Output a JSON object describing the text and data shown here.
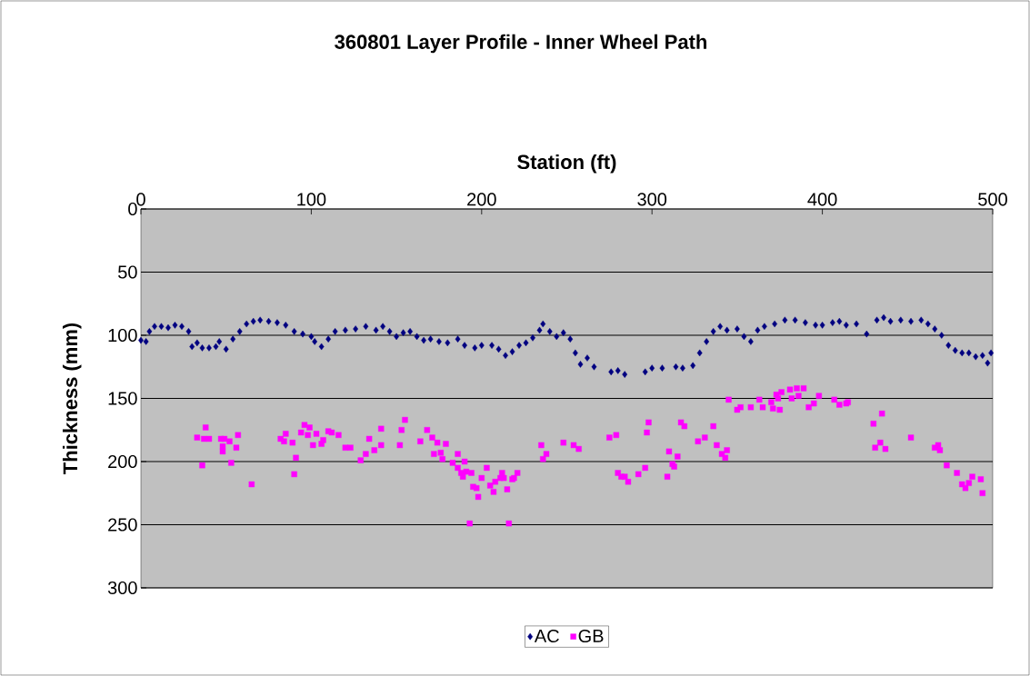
{
  "chart_data": {
    "type": "scatter",
    "title": "360801 Layer Profile - Inner Wheel Path",
    "xlabel": "Station (ft)",
    "ylabel": "Thickness (mm)",
    "xlim": [
      0,
      500
    ],
    "xticks": [
      0,
      100,
      200,
      300,
      400,
      500
    ],
    "ylim": [
      300,
      0
    ],
    "yticks": [
      0,
      50,
      100,
      150,
      200,
      250,
      300
    ],
    "grid": "y",
    "legend": "bottom",
    "series": [
      {
        "name": "AC",
        "color": "#000080",
        "marker": "diamond",
        "x": [
          0,
          3,
          5,
          8,
          12,
          16,
          20,
          24,
          28,
          30,
          33,
          36,
          40,
          44,
          46,
          50,
          54,
          58,
          62,
          66,
          70,
          75,
          80,
          85,
          90,
          95,
          100,
          102,
          106,
          110,
          114,
          120,
          126,
          132,
          138,
          142,
          146,
          150,
          154,
          158,
          162,
          166,
          170,
          175,
          180,
          186,
          190,
          196,
          200,
          206,
          210,
          214,
          218,
          222,
          226,
          230,
          234,
          236,
          240,
          244,
          248,
          252,
          255,
          258,
          262,
          266,
          276,
          280,
          284,
          296,
          300,
          306,
          314,
          318,
          324,
          328,
          332,
          336,
          340,
          344,
          350,
          354,
          358,
          362,
          366,
          372,
          378,
          384,
          390,
          396,
          400,
          406,
          410,
          414,
          420,
          426,
          432,
          436,
          440,
          446,
          452,
          458,
          462,
          466,
          470,
          474,
          478,
          482,
          486,
          490,
          494,
          497,
          499
        ],
        "values": [
          104,
          105,
          97,
          93,
          93,
          94,
          92,
          93,
          97,
          109,
          106,
          110,
          110,
          109,
          105,
          111,
          103,
          97,
          91,
          89,
          88,
          89,
          90,
          92,
          97,
          99,
          101,
          105,
          109,
          103,
          97,
          96,
          95,
          93,
          96,
          93,
          97,
          101,
          98,
          97,
          101,
          104,
          103,
          105,
          106,
          103,
          108,
          110,
          108,
          108,
          111,
          116,
          113,
          108,
          106,
          102,
          96,
          91,
          97,
          101,
          98,
          103,
          114,
          123,
          118,
          125,
          129,
          128,
          131,
          129,
          126,
          126,
          125,
          126,
          124,
          114,
          105,
          97,
          93,
          96,
          95,
          101,
          105,
          96,
          93,
          91,
          88,
          88,
          90,
          92,
          92,
          90,
          89,
          92,
          91,
          99,
          88,
          86,
          89,
          88,
          89,
          88,
          91,
          95,
          100,
          108,
          112,
          114,
          114,
          117,
          116,
          122,
          114
        ]
      },
      {
        "name": "GB",
        "color": "#ff00ff",
        "marker": "square",
        "x": [
          33,
          38,
          36,
          37,
          40,
          47,
          49,
          52,
          48,
          48,
          57,
          56,
          53,
          65,
          82,
          85,
          84,
          89,
          91,
          90,
          94,
          96,
          99,
          98,
          103,
          101,
          106,
          107,
          110,
          112,
          116,
          120,
          123,
          129,
          132,
          134,
          137,
          141,
          141,
          152,
          153,
          155,
          164,
          168,
          171,
          174,
          179,
          172,
          176,
          177,
          183,
          186,
          190,
          186,
          188,
          189,
          191,
          194,
          195,
          197,
          198,
          193,
          200,
          203,
          205,
          207,
          208,
          211,
          212,
          213,
          215,
          216,
          218,
          219,
          221,
          235,
          236,
          238,
          248,
          254,
          257,
          275,
          279,
          280,
          282,
          284,
          286,
          292,
          296,
          297,
          298,
          309,
          310,
          312,
          315,
          313,
          317,
          319,
          327,
          331,
          336,
          338,
          341,
          343,
          344,
          345,
          350,
          352,
          358,
          363,
          365,
          370,
          371,
          375,
          373,
          374,
          376,
          381,
          382,
          385,
          386,
          389,
          392,
          395,
          398,
          407,
          410,
          414,
          415,
          430,
          431,
          434,
          435,
          437,
          452,
          466,
          468,
          469,
          473,
          479,
          482,
          484,
          486,
          488,
          493,
          494
        ],
        "values": [
          181,
          173,
          203,
          182,
          182,
          182,
          182,
          184,
          192,
          188,
          179,
          189,
          201,
          218,
          182,
          178,
          184,
          185,
          197,
          210,
          177,
          171,
          173,
          179,
          178,
          187,
          186,
          183,
          176,
          177,
          179,
          189,
          189,
          199,
          194,
          182,
          191,
          187,
          174,
          187,
          175,
          167,
          184,
          175,
          181,
          185,
          186,
          194,
          193,
          198,
          201,
          194,
          200,
          205,
          209,
          212,
          208,
          209,
          220,
          221,
          228,
          249,
          213,
          205,
          219,
          224,
          216,
          213,
          209,
          213,
          222,
          249,
          214,
          213,
          209,
          187,
          198,
          194,
          185,
          187,
          190,
          181,
          179,
          209,
          212,
          212,
          216,
          210,
          205,
          177,
          169,
          212,
          192,
          202,
          196,
          204,
          169,
          172,
          184,
          181,
          172,
          187,
          194,
          197,
          191,
          151,
          159,
          157,
          157,
          151,
          157,
          153,
          158,
          159,
          147,
          150,
          145,
          143,
          150,
          142,
          148,
          142,
          157,
          154,
          148,
          151,
          155,
          154,
          153,
          170,
          189,
          185,
          162,
          190,
          181,
          189,
          187,
          191,
          203,
          209,
          218,
          221,
          217,
          212,
          214,
          225
        ]
      }
    ]
  }
}
